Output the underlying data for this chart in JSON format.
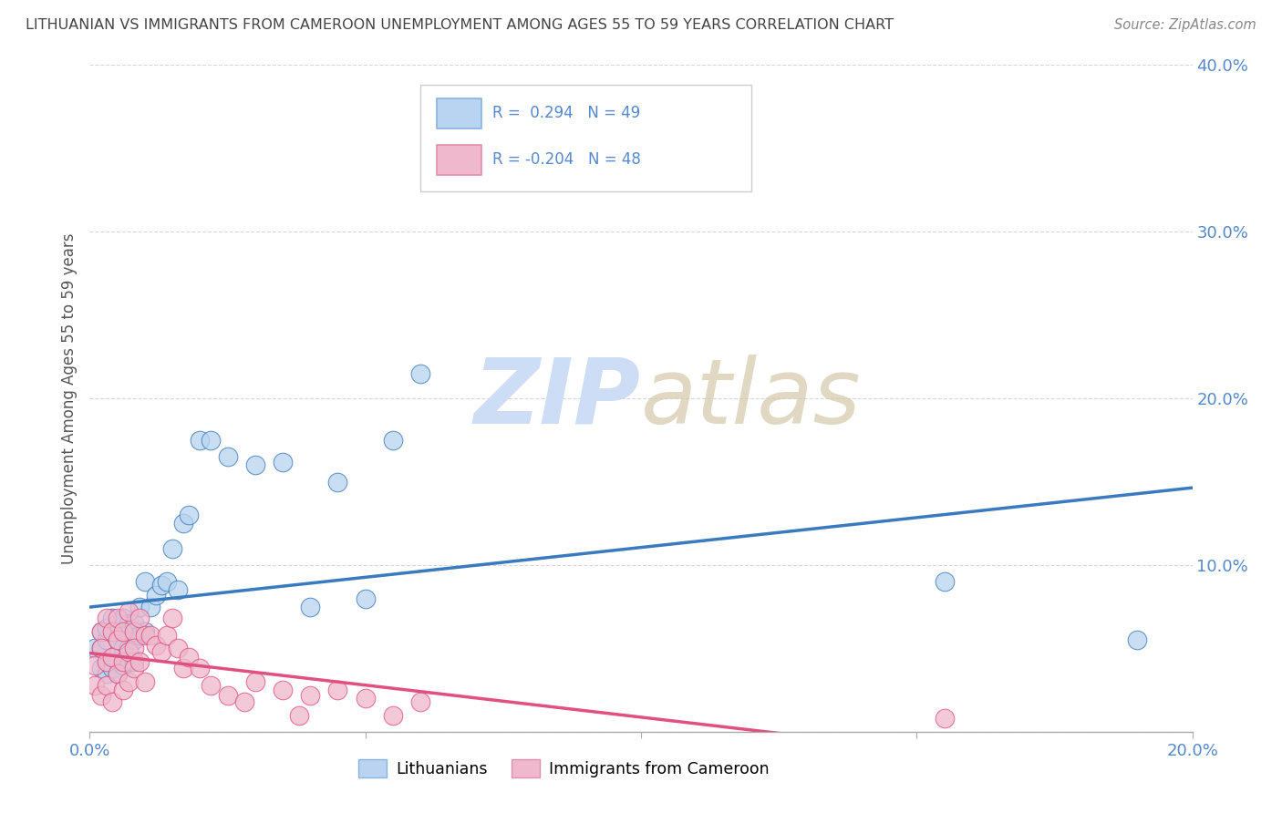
{
  "title": "LITHUANIAN VS IMMIGRANTS FROM CAMEROON UNEMPLOYMENT AMONG AGES 55 TO 59 YEARS CORRELATION CHART",
  "source": "Source: ZipAtlas.com",
  "ylabel": "Unemployment Among Ages 55 to 59 years",
  "xlim": [
    0.0,
    0.2
  ],
  "ylim": [
    0.0,
    0.4
  ],
  "blue_R": 0.294,
  "blue_N": 49,
  "pink_R": -0.204,
  "pink_N": 48,
  "blue_color": "#b8d4f0",
  "pink_color": "#f0b8cc",
  "blue_line_color": "#3a7abf",
  "pink_line_color": "#e05080",
  "title_color": "#444444",
  "axis_tick_color": "#5588cc",
  "watermark_color": "#ccddf5",
  "blue_scatter_x": [
    0.001,
    0.002,
    0.002,
    0.002,
    0.003,
    0.003,
    0.003,
    0.003,
    0.004,
    0.004,
    0.004,
    0.005,
    0.005,
    0.005,
    0.005,
    0.006,
    0.006,
    0.006,
    0.006,
    0.007,
    0.007,
    0.007,
    0.008,
    0.008,
    0.008,
    0.009,
    0.009,
    0.01,
    0.01,
    0.011,
    0.012,
    0.013,
    0.014,
    0.015,
    0.016,
    0.017,
    0.018,
    0.02,
    0.022,
    0.025,
    0.03,
    0.035,
    0.04,
    0.045,
    0.05,
    0.055,
    0.06,
    0.155,
    0.19
  ],
  "blue_scatter_y": [
    0.05,
    0.05,
    0.038,
    0.06,
    0.042,
    0.055,
    0.035,
    0.062,
    0.045,
    0.038,
    0.068,
    0.055,
    0.042,
    0.065,
    0.035,
    0.05,
    0.06,
    0.04,
    0.068,
    0.065,
    0.05,
    0.042,
    0.065,
    0.055,
    0.042,
    0.075,
    0.058,
    0.09,
    0.06,
    0.075,
    0.082,
    0.088,
    0.09,
    0.11,
    0.085,
    0.125,
    0.13,
    0.175,
    0.175,
    0.165,
    0.16,
    0.162,
    0.075,
    0.15,
    0.08,
    0.175,
    0.215,
    0.09,
    0.055
  ],
  "pink_scatter_x": [
    0.001,
    0.001,
    0.002,
    0.002,
    0.002,
    0.003,
    0.003,
    0.003,
    0.004,
    0.004,
    0.004,
    0.005,
    0.005,
    0.005,
    0.006,
    0.006,
    0.006,
    0.007,
    0.007,
    0.007,
    0.008,
    0.008,
    0.008,
    0.009,
    0.009,
    0.01,
    0.01,
    0.011,
    0.012,
    0.013,
    0.014,
    0.015,
    0.016,
    0.017,
    0.018,
    0.02,
    0.022,
    0.025,
    0.028,
    0.03,
    0.035,
    0.038,
    0.04,
    0.045,
    0.05,
    0.055,
    0.06,
    0.155
  ],
  "pink_scatter_y": [
    0.04,
    0.028,
    0.06,
    0.05,
    0.022,
    0.042,
    0.068,
    0.028,
    0.06,
    0.045,
    0.018,
    0.055,
    0.035,
    0.068,
    0.06,
    0.042,
    0.025,
    0.072,
    0.048,
    0.03,
    0.06,
    0.05,
    0.038,
    0.068,
    0.042,
    0.058,
    0.03,
    0.058,
    0.052,
    0.048,
    0.058,
    0.068,
    0.05,
    0.038,
    0.045,
    0.038,
    0.028,
    0.022,
    0.018,
    0.03,
    0.025,
    0.01,
    0.022,
    0.025,
    0.02,
    0.01,
    0.018,
    0.008
  ]
}
